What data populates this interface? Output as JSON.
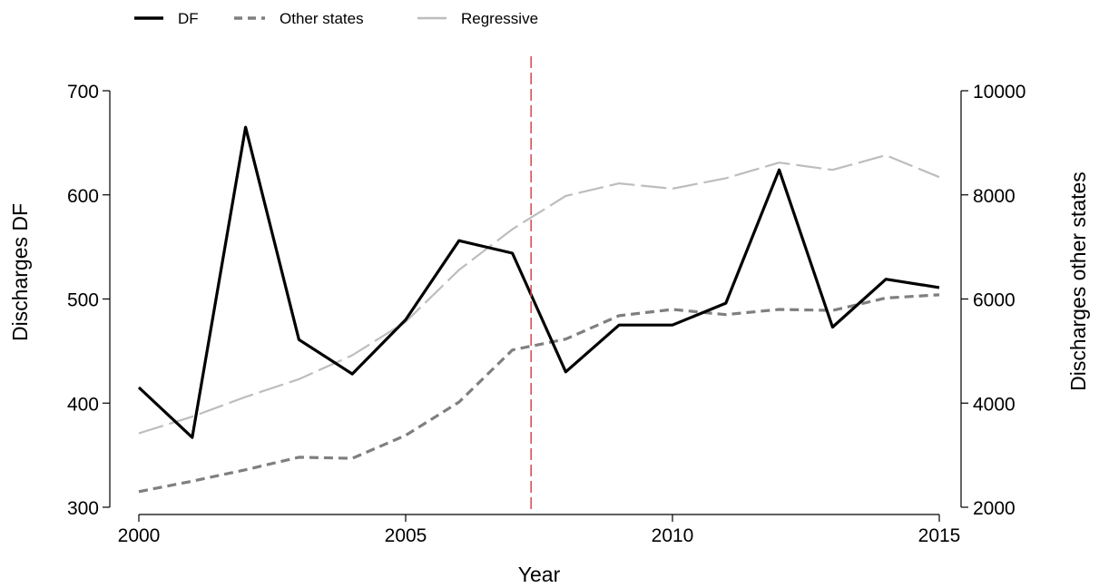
{
  "chart_data": {
    "type": "line",
    "xlabel": "Year",
    "ylabel_left": "Discharges DF",
    "ylabel_right": "Discharges other states",
    "xlim": [
      2000,
      2015
    ],
    "ylim_left": [
      300,
      700
    ],
    "ylim_right": [
      2000,
      10000
    ],
    "x_ticks": [
      2000,
      2005,
      2010,
      2015
    ],
    "y_ticks_left": [
      300,
      400,
      500,
      600,
      700
    ],
    "y_ticks_right": [
      2000,
      4000,
      6000,
      8000,
      10000
    ],
    "x": [
      2000,
      2001,
      2002,
      2003,
      2004,
      2005,
      2006,
      2007,
      2008,
      2009,
      2010,
      2011,
      2012,
      2013,
      2014,
      2015
    ],
    "series": [
      {
        "name": "DF",
        "axis": "left",
        "color": "#000000",
        "style": "solid",
        "values": [
          415,
          367,
          665,
          461,
          428,
          480,
          556,
          544,
          430,
          475,
          475,
          496,
          624,
          473,
          519,
          511
        ]
      },
      {
        "name": "Other states",
        "axis": "right",
        "color": "#7f7f7f",
        "style": "dashed",
        "values": [
          2300,
          2500,
          2720,
          2960,
          2940,
          3380,
          4020,
          5020,
          5230,
          5680,
          5800,
          5700,
          5800,
          5780,
          6020,
          6080
        ]
      },
      {
        "name": "Regressive",
        "axis": "right",
        "color": "#bdbdbd",
        "style": "longdash",
        "values": [
          3420,
          3740,
          4120,
          4460,
          4920,
          5560,
          6560,
          7340,
          7980,
          8220,
          8120,
          8320,
          8620,
          8480,
          8760,
          8340
        ]
      }
    ],
    "vline": {
      "x": 2007.35,
      "color": "#e0404a",
      "style": "dashed"
    },
    "legend_position": "top-left",
    "grid": false
  }
}
